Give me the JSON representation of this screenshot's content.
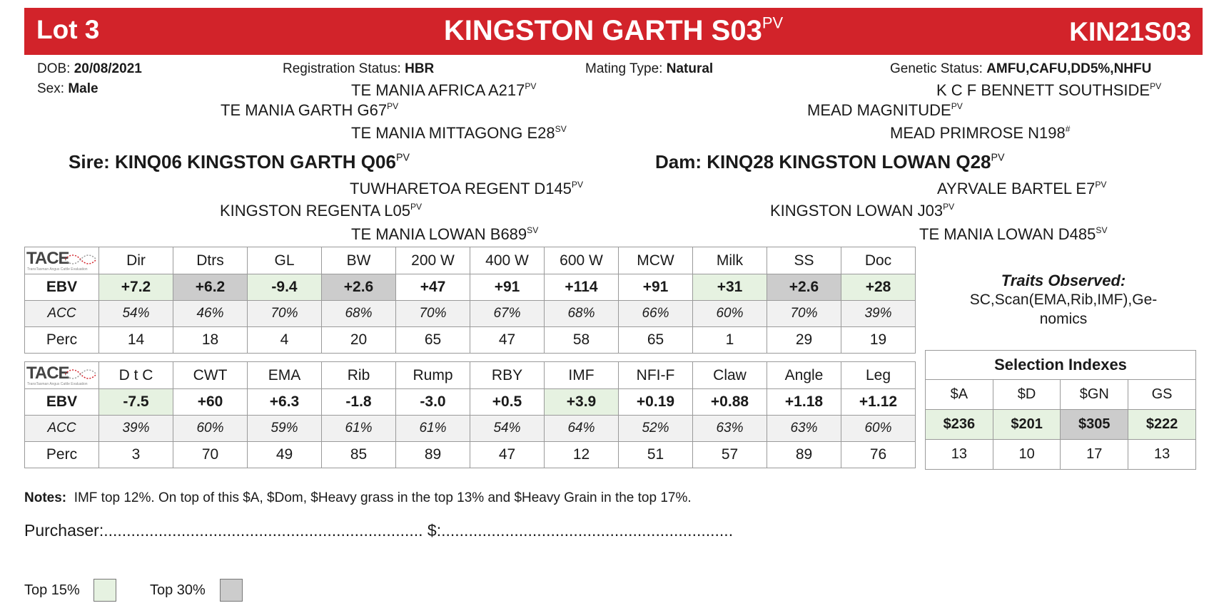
{
  "header": {
    "lot": "Lot 3",
    "name": "KINGSTON GARTH S03",
    "name_sup": "PV",
    "code": "KIN21S03"
  },
  "info": {
    "dob_label": "DOB:",
    "dob": "20/08/2021",
    "reg_label": "Registration Status:",
    "reg": "HBR",
    "mating_label": "Mating Type:",
    "mating": "Natural",
    "genetic_label": "Genetic Status:",
    "genetic": "AMFU,CAFU,DD5%,NHFU",
    "sex_label": "Sex:",
    "sex": "Male"
  },
  "pedigree": {
    "sire_sire_sire": "TE MANIA AFRICA A217",
    "sss_sup": "PV",
    "sire_sire": "TE MANIA GARTH G67",
    "ss_sup": "PV",
    "sire_sire_dam": "TE MANIA MITTAGONG E28",
    "ssd_sup": "SV",
    "sire": "Sire: KINQ06 KINGSTON GARTH Q06",
    "sire_sup": "PV",
    "sire_dam_sire": "TUWHARETOA REGENT D145",
    "sds_sup": "PV",
    "sire_dam": "KINGSTON REGENTA L05",
    "sd_sup": "PV",
    "sire_dam_dam": "TE MANIA LOWAN B689",
    "sdd_sup": "SV",
    "dam_sire_sire": "K C F BENNETT SOUTHSIDE",
    "dss_sup": "PV",
    "dam_sire": "MEAD MAGNITUDE",
    "ds_sup": "PV",
    "dam_sire_dam": "MEAD PRIMROSE N198",
    "dsd_sup": "#",
    "dam": "Dam: KINQ28 KINGSTON LOWAN Q28",
    "dam_sup": "PV",
    "dam_dam_sire": "AYRVALE BARTEL E7",
    "dds_sup": "PV",
    "dam_dam": "KINGSTON LOWAN J03",
    "dd_sup": "PV",
    "dam_dam_dam": "TE MANIA LOWAN D485",
    "ddd_sup": "SV"
  },
  "tace": {
    "logo": "TACE",
    "sub": "TransTasman Angus Cattle Evaluation"
  },
  "row_labels": {
    "ebv": "EBV",
    "acc": "ACC",
    "perc": "Perc"
  },
  "table1": {
    "headers": [
      "Dir",
      "Dtrs",
      "GL",
      "BW",
      "200 W",
      "400 W",
      "600 W",
      "MCW",
      "Milk",
      "SS",
      "Doc"
    ],
    "ebv": [
      "+7.2",
      "+6.2",
      "-9.4",
      "+2.6",
      "+47",
      "+91",
      "+114",
      "+91",
      "+31",
      "+2.6",
      "+28"
    ],
    "acc": [
      "54%",
      "46%",
      "70%",
      "68%",
      "70%",
      "67%",
      "68%",
      "66%",
      "60%",
      "70%",
      "39%"
    ],
    "perc": [
      "14",
      "18",
      "4",
      "20",
      "65",
      "47",
      "58",
      "65",
      "1",
      "29",
      "19"
    ]
  },
  "table2": {
    "headers": [
      "D t C",
      "CWT",
      "EMA",
      "Rib",
      "Rump",
      "RBY",
      "IMF",
      "NFI-F",
      "Claw",
      "Angle",
      "Leg"
    ],
    "ebv": [
      "-7.5",
      "+60",
      "+6.3",
      "-1.8",
      "-3.0",
      "+0.5",
      "+3.9",
      "+0.19",
      "+0.88",
      "+1.18",
      "+1.12"
    ],
    "acc": [
      "39%",
      "60%",
      "59%",
      "61%",
      "61%",
      "54%",
      "64%",
      "52%",
      "63%",
      "63%",
      "60%"
    ],
    "perc": [
      "3",
      "70",
      "49",
      "85",
      "89",
      "47",
      "12",
      "51",
      "57",
      "89",
      "76"
    ]
  },
  "traits": {
    "title": "Traits Observed:",
    "line1": "SC,Scan(EMA,Rib,IMF),Ge-",
    "line2": "nomics"
  },
  "selection": {
    "title": "Selection Indexes",
    "headers": [
      "$A",
      "$D",
      "$GN",
      "GS"
    ],
    "values": [
      "$236",
      "$201",
      "$305",
      "$222"
    ],
    "perc": [
      "13",
      "10",
      "17",
      "13"
    ]
  },
  "notes": {
    "label": "Notes:",
    "text": "IMF top 12%. On top of this $A, $Dom, $Heavy grass in the top 13% and $Heavy Grain in the top 17%."
  },
  "purchaser": {
    "label": "Purchaser:",
    "dots1": "......................................................................",
    "price_label": "$:",
    "dots2": "................................................................"
  },
  "legend": {
    "top15": "Top 15%",
    "top30": "Top 30%",
    "top15_color": "#e6f2e1",
    "top30_color": "#cccccc"
  }
}
